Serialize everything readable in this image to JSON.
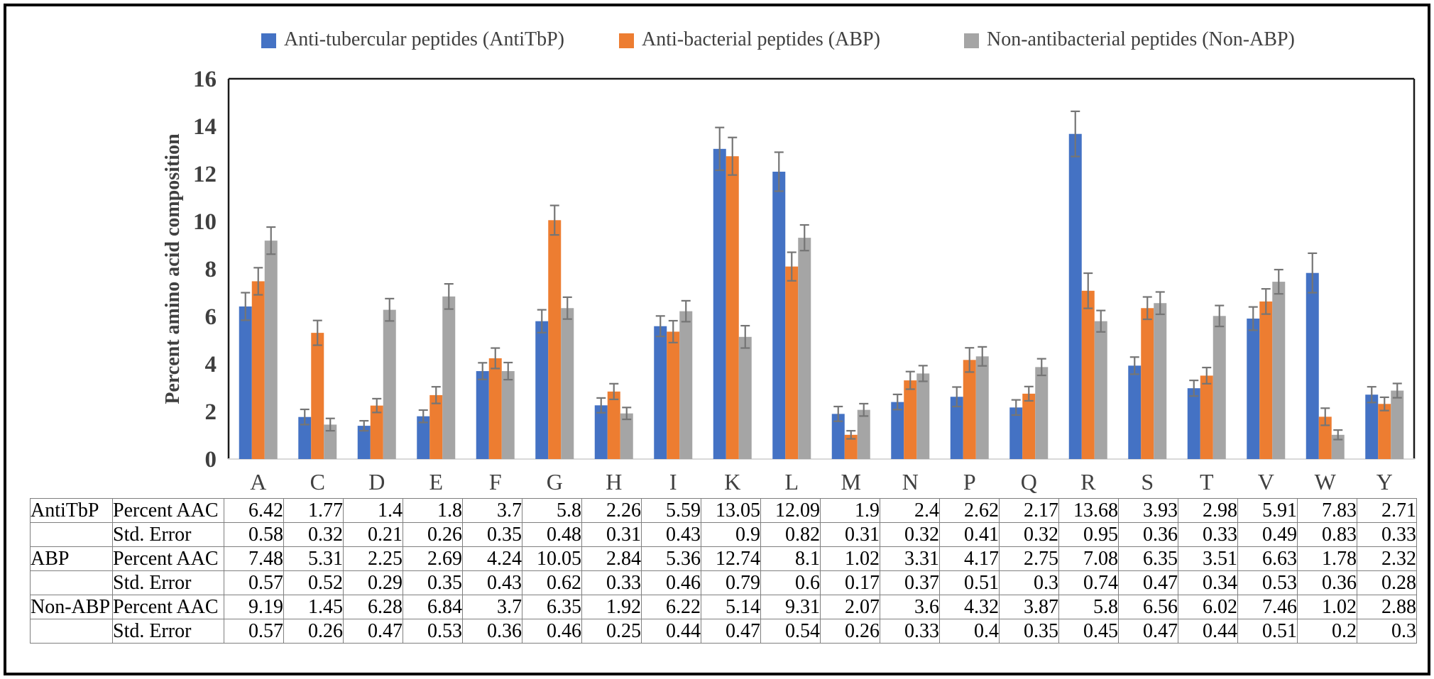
{
  "figure": {
    "background": "#ffffff",
    "frame_color": "#000000",
    "text_color": "#404040"
  },
  "chart_data": {
    "type": "bar",
    "title": "",
    "xlabel": "",
    "ylabel": "Percent amino acid composition",
    "ylim": [
      0,
      16
    ],
    "ytick_step": 2,
    "grid": false,
    "legend_position": "top",
    "error_bar_color": "#757575",
    "categories": [
      "A",
      "C",
      "D",
      "E",
      "F",
      "G",
      "H",
      "I",
      "K",
      "L",
      "M",
      "N",
      "P",
      "Q",
      "R",
      "S",
      "T",
      "V",
      "W",
      "Y"
    ],
    "series": [
      {
        "name": "Anti-tubercular peptides (AntiTbP)",
        "color": "#4472C4",
        "values": [
          6.42,
          1.77,
          1.4,
          1.8,
          3.7,
          5.8,
          2.26,
          5.59,
          13.05,
          12.09,
          1.9,
          2.4,
          2.62,
          2.17,
          13.68,
          3.93,
          2.98,
          5.91,
          7.83,
          2.71
        ],
        "errors": [
          0.58,
          0.32,
          0.21,
          0.26,
          0.35,
          0.48,
          0.31,
          0.43,
          0.9,
          0.82,
          0.31,
          0.32,
          0.41,
          0.32,
          0.95,
          0.36,
          0.33,
          0.49,
          0.83,
          0.33
        ]
      },
      {
        "name": "Anti-bacterial peptides (ABP)",
        "color": "#ED7D31",
        "values": [
          7.48,
          5.31,
          2.25,
          2.69,
          4.24,
          10.05,
          2.84,
          5.36,
          12.74,
          8.1,
          1.02,
          3.31,
          4.17,
          2.75,
          7.08,
          6.35,
          3.51,
          6.63,
          1.78,
          2.32
        ],
        "errors": [
          0.57,
          0.52,
          0.29,
          0.35,
          0.43,
          0.62,
          0.33,
          0.46,
          0.79,
          0.6,
          0.17,
          0.37,
          0.51,
          0.3,
          0.74,
          0.47,
          0.34,
          0.53,
          0.36,
          0.28
        ]
      },
      {
        "name": "Non-antibacterial peptides (Non-ABP)",
        "color": "#A5A5A5",
        "values": [
          9.19,
          1.45,
          6.28,
          6.84,
          3.7,
          6.35,
          1.92,
          6.22,
          5.14,
          9.31,
          2.07,
          3.6,
          4.32,
          3.87,
          5.8,
          6.56,
          6.02,
          7.46,
          1.02,
          2.88
        ],
        "errors": [
          0.57,
          0.26,
          0.47,
          0.53,
          0.36,
          0.46,
          0.25,
          0.44,
          0.47,
          0.54,
          0.26,
          0.33,
          0.4,
          0.35,
          0.45,
          0.47,
          0.44,
          0.51,
          0.2,
          0.3
        ]
      }
    ]
  },
  "table": {
    "row_groups": [
      {
        "group": "AntiTbP",
        "rows": [
          {
            "label": "Percent AAC",
            "values": [
              "6.42",
              "1.77",
              "1.4",
              "1.8",
              "3.7",
              "5.8",
              "2.26",
              "5.59",
              "13.05",
              "12.09",
              "1.9",
              "2.4",
              "2.62",
              "2.17",
              "13.68",
              "3.93",
              "2.98",
              "5.91",
              "7.83",
              "2.71"
            ]
          },
          {
            "label": "Std. Error",
            "values": [
              "0.58",
              "0.32",
              "0.21",
              "0.26",
              "0.35",
              "0.48",
              "0.31",
              "0.43",
              "0.9",
              "0.82",
              "0.31",
              "0.32",
              "0.41",
              "0.32",
              "0.95",
              "0.36",
              "0.33",
              "0.49",
              "0.83",
              "0.33"
            ]
          }
        ]
      },
      {
        "group": "ABP",
        "rows": [
          {
            "label": "Percent AAC",
            "values": [
              "7.48",
              "5.31",
              "2.25",
              "2.69",
              "4.24",
              "10.05",
              "2.84",
              "5.36",
              "12.74",
              "8.1",
              "1.02",
              "3.31",
              "4.17",
              "2.75",
              "7.08",
              "6.35",
              "3.51",
              "6.63",
              "1.78",
              "2.32"
            ]
          },
          {
            "label": "Std. Error",
            "values": [
              "0.57",
              "0.52",
              "0.29",
              "0.35",
              "0.43",
              "0.62",
              "0.33",
              "0.46",
              "0.79",
              "0.6",
              "0.17",
              "0.37",
              "0.51",
              "0.3",
              "0.74",
              "0.47",
              "0.34",
              "0.53",
              "0.36",
              "0.28"
            ]
          }
        ]
      },
      {
        "group": "Non-ABP",
        "rows": [
          {
            "label": "Percent AAC",
            "values": [
              "9.19",
              "1.45",
              "6.28",
              "6.84",
              "3.7",
              "6.35",
              "1.92",
              "6.22",
              "5.14",
              "9.31",
              "2.07",
              "3.6",
              "4.32",
              "3.87",
              "5.8",
              "6.56",
              "6.02",
              "7.46",
              "1.02",
              "2.88"
            ]
          },
          {
            "label": "Std. Error",
            "values": [
              "0.57",
              "0.26",
              "0.47",
              "0.53",
              "0.36",
              "0.46",
              "0.25",
              "0.44",
              "0.47",
              "0.54",
              "0.26",
              "0.33",
              "0.4",
              "0.35",
              "0.45",
              "0.47",
              "0.44",
              "0.51",
              "0.2",
              "0.3"
            ]
          }
        ]
      }
    ]
  }
}
